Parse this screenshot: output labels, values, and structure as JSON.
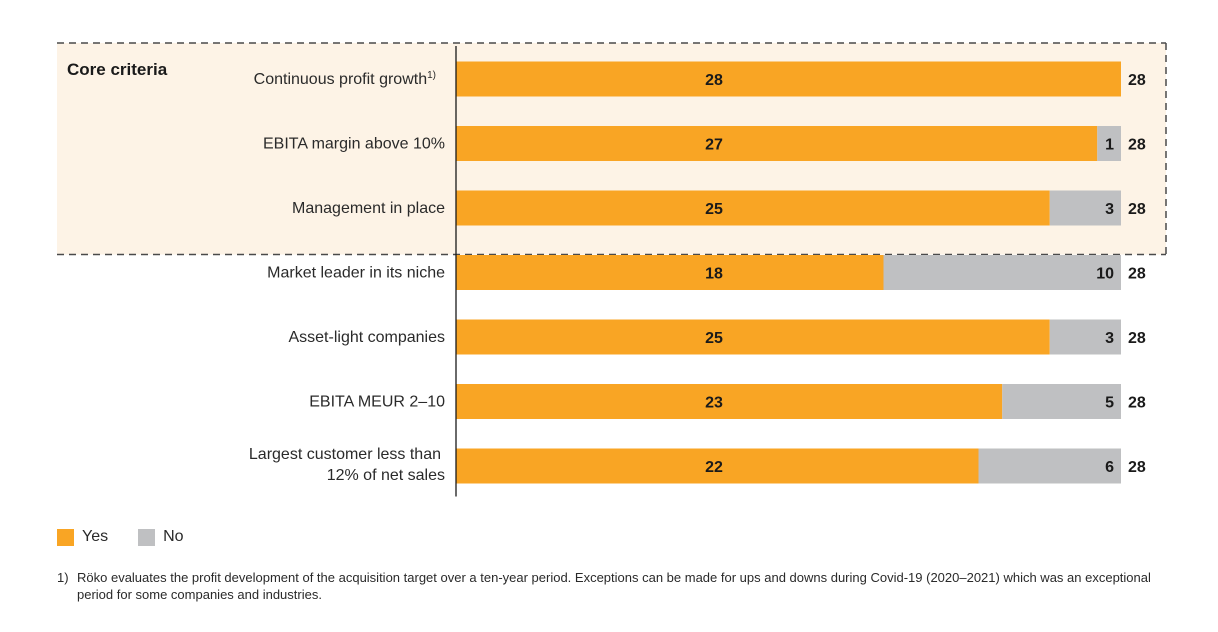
{
  "chart_data": {
    "type": "bar",
    "orientation": "horizontal",
    "stacked": true,
    "group_label": "Core criteria",
    "core_group_size": 3,
    "categories": [
      "Continuous profit growth",
      "EBITA margin above 10%",
      "Management in place",
      "Market leader in its niche",
      "Asset-light companies",
      "EBITA MEUR 2–10",
      "Largest customer less than 12% of net sales"
    ],
    "category_footnote_marks": [
      "1)",
      "",
      "",
      "",
      "",
      "",
      ""
    ],
    "series": [
      {
        "name": "Yes",
        "color": "#F9A524",
        "values": [
          28,
          27,
          25,
          18,
          25,
          23,
          22
        ]
      },
      {
        "name": "No",
        "color": "#BFC0C2",
        "values": [
          0,
          1,
          3,
          10,
          3,
          5,
          6
        ]
      }
    ],
    "totals": [
      28,
      28,
      28,
      28,
      28,
      28,
      28
    ],
    "xlim": [
      0,
      28
    ],
    "grid": false,
    "legend_position": "bottom-left",
    "group_highlight_color": "#FDF3E6"
  },
  "legend": {
    "items": [
      {
        "label": "Yes",
        "color": "#F9A524"
      },
      {
        "label": "No",
        "color": "#BFC0C2"
      }
    ]
  },
  "footnote": {
    "marker": "1)",
    "text": "Röko evaluates the profit development of the acquisition target over a ten-year period. Exceptions can be made for ups and downs during Covid-19 (2020–2021) which was an exceptional period for some companies and industries."
  }
}
